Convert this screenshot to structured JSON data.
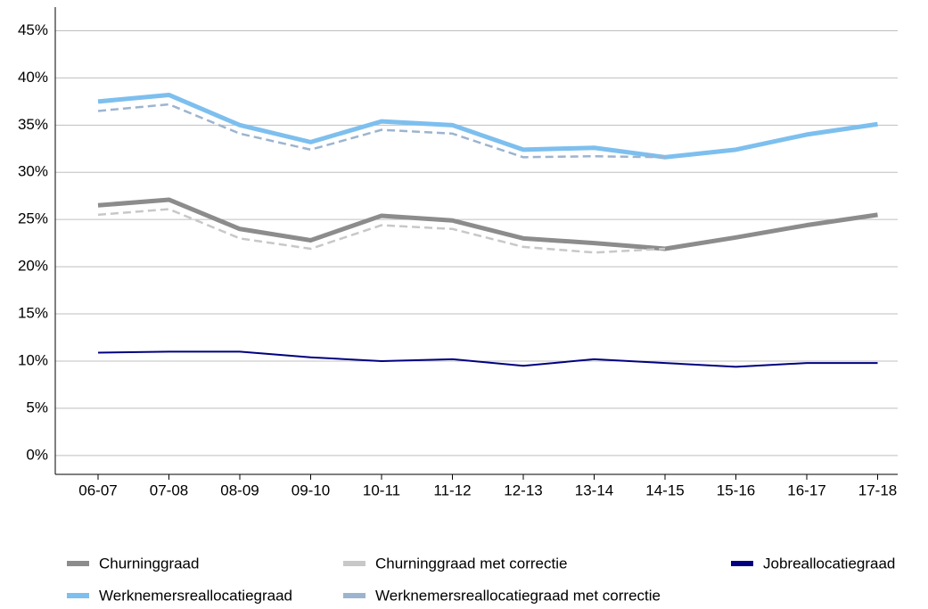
{
  "chart_data": {
    "type": "line",
    "categories": [
      "06-07",
      "07-08",
      "08-09",
      "09-10",
      "10-11",
      "11-12",
      "12-13",
      "13-14",
      "14-15",
      "15-16",
      "16-17",
      "17-18"
    ],
    "ylim": [
      -2,
      47.5
    ],
    "yticks": [
      {
        "value": 0,
        "label": "0%"
      },
      {
        "value": 5,
        "label": "5%"
      },
      {
        "value": 10,
        "label": "10%"
      },
      {
        "value": 15,
        "label": "15%"
      },
      {
        "value": 20,
        "label": "20%"
      },
      {
        "value": 25,
        "label": "25%"
      },
      {
        "value": 30,
        "label": "30%"
      },
      {
        "value": 35,
        "label": "35%"
      },
      {
        "value": 40,
        "label": "40%"
      },
      {
        "value": 45,
        "label": "45%"
      }
    ],
    "grid": true,
    "legend": "bottom",
    "series": [
      {
        "name": "Churninggraad",
        "color": "#8c8c8c",
        "style": "thick",
        "values": [
          26.5,
          27.1,
          24.0,
          22.8,
          25.4,
          24.9,
          23.0,
          22.5,
          21.9,
          23.1,
          24.4,
          25.5
        ]
      },
      {
        "name": "Churninggraad met correctie",
        "color": "#c8c8c8",
        "style": "dashed",
        "values": [
          25.5,
          26.1,
          23.0,
          21.9,
          24.4,
          24.0,
          22.1,
          21.5,
          21.9,
          null,
          null,
          null
        ]
      },
      {
        "name": "Jobreallocatiegraad",
        "color": "#000080",
        "style": "thin",
        "values": [
          10.9,
          11.0,
          11.0,
          10.4,
          10.0,
          10.2,
          9.5,
          10.2,
          9.8,
          9.4,
          9.8,
          9.8
        ]
      },
      {
        "name": "Werknemersreallocatiegraad",
        "color": "#7dbfee",
        "style": "thick",
        "values": [
          37.5,
          38.2,
          35.0,
          33.2,
          35.4,
          35.0,
          32.4,
          32.6,
          31.6,
          32.4,
          34.0,
          35.1
        ]
      },
      {
        "name": "Werknemersreallocatiegraad met correctie",
        "color": "#9db4cf",
        "style": "dashed",
        "values": [
          36.5,
          37.2,
          34.1,
          32.4,
          34.5,
          34.1,
          31.6,
          31.7,
          31.6,
          null,
          null,
          null
        ]
      }
    ]
  }
}
